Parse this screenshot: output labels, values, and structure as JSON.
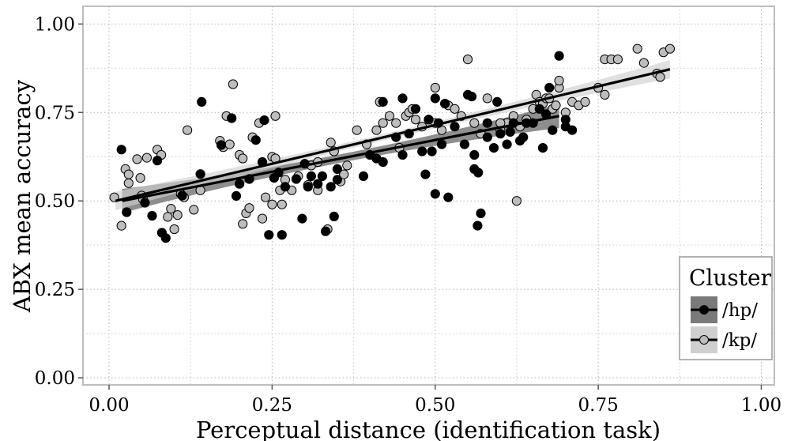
{
  "chart_data": {
    "type": "scatter",
    "title": "",
    "xlabel": "Perceptual distance (identification task)",
    "ylabel": "ABX mean accuracy",
    "xlim": [
      -0.04,
      1.02
    ],
    "ylim": [
      -0.02,
      1.05
    ],
    "x_ticks": [
      0,
      0.25,
      0.5,
      0.75,
      1.0
    ],
    "x_tick_labels": [
      "0.00",
      "0.25",
      "0.50",
      "0.75",
      "1.00"
    ],
    "y_ticks": [
      0,
      0.25,
      0.5,
      0.75,
      1.0
    ],
    "y_tick_labels": [
      "0.00",
      "0.25",
      "0.50",
      "0.75",
      "1.00"
    ],
    "grid": true,
    "legend": {
      "title": "Cluster",
      "placement": "bottom-right",
      "entries": [
        "/hp/",
        "/kp/"
      ]
    },
    "series": [
      {
        "name": "/hp/",
        "color": "#000000",
        "band_color": "#7a7a7a",
        "fit": {
          "x": [
            0.02,
            0.69
          ],
          "y": [
            0.5,
            0.74
          ]
        },
        "points": [
          [
            0.019,
            0.645
          ],
          [
            0.027,
            0.468
          ],
          [
            0.055,
            0.495
          ],
          [
            0.066,
            0.458
          ],
          [
            0.074,
            0.614
          ],
          [
            0.081,
            0.41
          ],
          [
            0.087,
            0.395
          ],
          [
            0.112,
            0.515
          ],
          [
            0.14,
            0.576
          ],
          [
            0.142,
            0.78
          ],
          [
            0.172,
            0.658
          ],
          [
            0.188,
            0.734
          ],
          [
            0.195,
            0.514
          ],
          [
            0.2,
            0.548
          ],
          [
            0.215,
            0.562
          ],
          [
            0.225,
            0.672
          ],
          [
            0.235,
            0.61
          ],
          [
            0.238,
            0.728
          ],
          [
            0.245,
            0.404
          ],
          [
            0.253,
            0.565
          ],
          [
            0.26,
            0.58
          ],
          [
            0.265,
            0.404
          ],
          [
            0.27,
            0.54
          ],
          [
            0.287,
            0.562
          ],
          [
            0.296,
            0.45
          ],
          [
            0.3,
            0.605
          ],
          [
            0.305,
            0.54
          ],
          [
            0.31,
            0.57
          ],
          [
            0.32,
            0.548
          ],
          [
            0.327,
            0.57
          ],
          [
            0.332,
            0.414
          ],
          [
            0.34,
            0.54
          ],
          [
            0.345,
            0.456
          ],
          [
            0.35,
            0.59
          ],
          [
            0.35,
            0.56
          ],
          [
            0.39,
            0.57
          ],
          [
            0.4,
            0.63
          ],
          [
            0.41,
            0.62
          ],
          [
            0.42,
            0.61
          ],
          [
            0.42,
            0.78
          ],
          [
            0.44,
            0.68
          ],
          [
            0.45,
            0.63
          ],
          [
            0.45,
            0.79
          ],
          [
            0.46,
            0.69
          ],
          [
            0.47,
            0.76
          ],
          [
            0.48,
            0.64
          ],
          [
            0.485,
            0.575
          ],
          [
            0.49,
            0.73
          ],
          [
            0.495,
            0.64
          ],
          [
            0.5,
            0.52
          ],
          [
            0.5,
            0.79
          ],
          [
            0.505,
            0.72
          ],
          [
            0.51,
            0.66
          ],
          [
            0.515,
            0.775
          ],
          [
            0.52,
            0.51
          ],
          [
            0.53,
            0.71
          ],
          [
            0.545,
            0.66
          ],
          [
            0.55,
            0.8
          ],
          [
            0.556,
            0.795
          ],
          [
            0.56,
            0.63
          ],
          [
            0.56,
            0.59
          ],
          [
            0.565,
            0.43
          ],
          [
            0.566,
            0.58
          ],
          [
            0.57,
            0.465
          ],
          [
            0.58,
            0.72
          ],
          [
            0.58,
            0.68
          ],
          [
            0.59,
            0.65
          ],
          [
            0.595,
            0.78
          ],
          [
            0.6,
            0.69
          ],
          [
            0.61,
            0.66
          ],
          [
            0.615,
            0.695
          ],
          [
            0.62,
            0.72
          ],
          [
            0.63,
            0.67
          ],
          [
            0.635,
            0.68
          ],
          [
            0.64,
            0.72
          ],
          [
            0.65,
            0.72
          ],
          [
            0.66,
            0.76
          ],
          [
            0.665,
            0.65
          ],
          [
            0.67,
            0.745
          ],
          [
            0.675,
            0.82
          ],
          [
            0.68,
            0.7
          ],
          [
            0.69,
            0.91
          ],
          [
            0.7,
            0.73
          ],
          [
            0.7,
            0.71
          ],
          [
            0.71,
            0.7
          ]
        ]
      },
      {
        "name": "/kp/",
        "color": "#bdbdbd",
        "band_color": "#cfcfcf",
        "fit": {
          "x": [
            0.01,
            0.86
          ],
          "y": [
            0.5,
            0.872
          ]
        },
        "points": [
          [
            0.008,
            0.51
          ],
          [
            0.019,
            0.43
          ],
          [
            0.025,
            0.59
          ],
          [
            0.03,
            0.55
          ],
          [
            0.03,
            0.575
          ],
          [
            0.043,
            0.618
          ],
          [
            0.048,
            0.565
          ],
          [
            0.05,
            0.515
          ],
          [
            0.052,
            0.505
          ],
          [
            0.058,
            0.622
          ],
          [
            0.074,
            0.645
          ],
          [
            0.08,
            0.63
          ],
          [
            0.09,
            0.455
          ],
          [
            0.095,
            0.478
          ],
          [
            0.1,
            0.42
          ],
          [
            0.105,
            0.46
          ],
          [
            0.11,
            0.52
          ],
          [
            0.115,
            0.51
          ],
          [
            0.12,
            0.7
          ],
          [
            0.13,
            0.475
          ],
          [
            0.14,
            0.53
          ],
          [
            0.17,
            0.67
          ],
          [
            0.175,
            0.652
          ],
          [
            0.18,
            0.74
          ],
          [
            0.185,
            0.66
          ],
          [
            0.19,
            0.83
          ],
          [
            0.2,
            0.63
          ],
          [
            0.205,
            0.62
          ],
          [
            0.205,
            0.435
          ],
          [
            0.21,
            0.465
          ],
          [
            0.215,
            0.48
          ],
          [
            0.22,
            0.68
          ],
          [
            0.23,
            0.72
          ],
          [
            0.235,
            0.45
          ],
          [
            0.24,
            0.51
          ],
          [
            0.25,
            0.49
          ],
          [
            0.25,
            0.625
          ],
          [
            0.255,
            0.74
          ],
          [
            0.255,
            0.62
          ],
          [
            0.262,
            0.53
          ],
          [
            0.265,
            0.49
          ],
          [
            0.27,
            0.56
          ],
          [
            0.28,
            0.53
          ],
          [
            0.29,
            0.57
          ],
          [
            0.305,
            0.545
          ],
          [
            0.31,
            0.6
          ],
          [
            0.32,
            0.61
          ],
          [
            0.32,
            0.53
          ],
          [
            0.335,
            0.42
          ],
          [
            0.34,
            0.665
          ],
          [
            0.345,
            0.64
          ],
          [
            0.355,
            0.555
          ],
          [
            0.36,
            0.575
          ],
          [
            0.365,
            0.6
          ],
          [
            0.38,
            0.7
          ],
          [
            0.395,
            0.66
          ],
          [
            0.41,
            0.7
          ],
          [
            0.415,
            0.78
          ],
          [
            0.42,
            0.72
          ],
          [
            0.43,
            0.74
          ],
          [
            0.44,
            0.72
          ],
          [
            0.445,
            0.65
          ],
          [
            0.455,
            0.74
          ],
          [
            0.46,
            0.75
          ],
          [
            0.465,
            0.76
          ],
          [
            0.47,
            0.73
          ],
          [
            0.48,
            0.71
          ],
          [
            0.49,
            0.73
          ],
          [
            0.5,
            0.72
          ],
          [
            0.5,
            0.82
          ],
          [
            0.51,
            0.7
          ],
          [
            0.52,
            0.77
          ],
          [
            0.53,
            0.76
          ],
          [
            0.54,
            0.74
          ],
          [
            0.55,
            0.9
          ],
          [
            0.56,
            0.72
          ],
          [
            0.57,
            0.69
          ],
          [
            0.58,
            0.79
          ],
          [
            0.6,
            0.7
          ],
          [
            0.61,
            0.72
          ],
          [
            0.62,
            0.74
          ],
          [
            0.63,
            0.71
          ],
          [
            0.64,
            0.73
          ],
          [
            0.65,
            0.76
          ],
          [
            0.655,
            0.8
          ],
          [
            0.66,
            0.78
          ],
          [
            0.665,
            0.775
          ],
          [
            0.67,
            0.79
          ],
          [
            0.675,
            0.79
          ],
          [
            0.68,
            0.76
          ],
          [
            0.685,
            0.77
          ],
          [
            0.69,
            0.82
          ],
          [
            0.69,
            0.84
          ],
          [
            0.7,
            0.75
          ],
          [
            0.71,
            0.78
          ],
          [
            0.72,
            0.77
          ],
          [
            0.73,
            0.78
          ],
          [
            0.75,
            0.82
          ],
          [
            0.76,
            0.8
          ],
          [
            0.76,
            0.9
          ],
          [
            0.77,
            0.9
          ],
          [
            0.78,
            0.9
          ],
          [
            0.81,
            0.93
          ],
          [
            0.82,
            0.89
          ],
          [
            0.84,
            0.86
          ],
          [
            0.845,
            0.85
          ],
          [
            0.85,
            0.92
          ],
          [
            0.86,
            0.93
          ],
          [
            0.625,
            0.5
          ],
          [
            0.6,
            0.72
          ]
        ]
      }
    ]
  }
}
